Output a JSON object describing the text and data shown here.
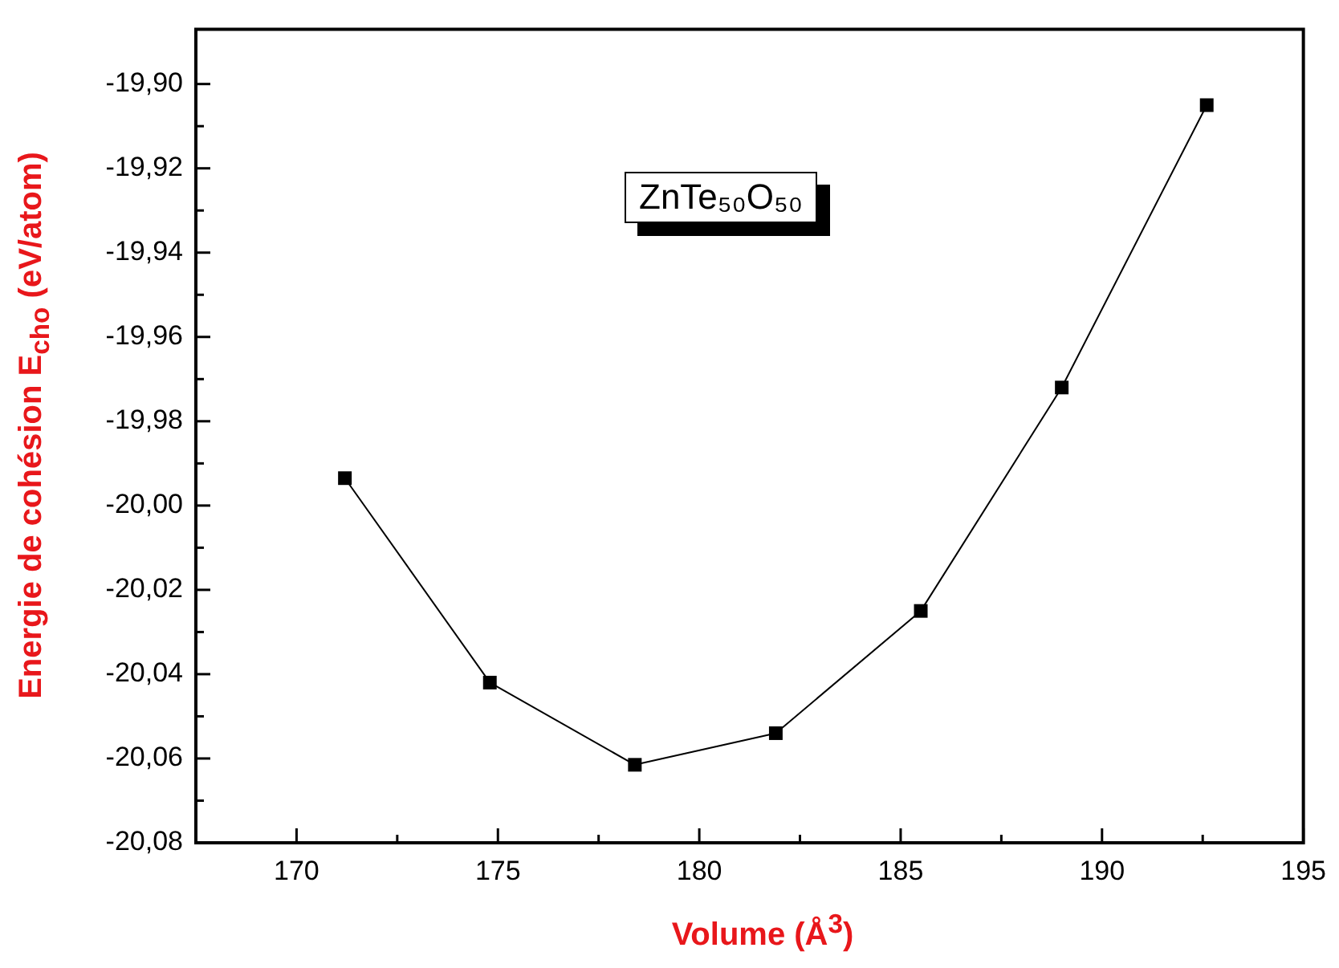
{
  "chart_data": {
    "type": "line",
    "xlabel": "Volume (Å$^{3}$)",
    "ylabel": "Energie de cohésion E$_{cho}$ (eV/atom)",
    "annotations": [
      "ZnTe₅₀O₅₀"
    ],
    "x": [
      171.2,
      174.8,
      178.4,
      181.9,
      185.5,
      189.0,
      192.6
    ],
    "series": [
      {
        "color": "#000000",
        "values": [
          -19.9935,
          -20.042,
          -20.0615,
          -20.054,
          -20.025,
          -19.972,
          -19.905
        ]
      }
    ],
    "marker": "square",
    "line_style": "solid",
    "grid": false,
    "legend": false,
    "xlim": [
      167.5,
      195
    ],
    "xticks": [
      170,
      {
        "value": 172.5,
        "label": null
      },
      175,
      {
        "value": 177.5,
        "label": null
      },
      180,
      {
        "value": 182.5,
        "label": null
      },
      185,
      {
        "value": 187.5,
        "label": null
      },
      190,
      {
        "value": 192.5,
        "label": null
      },
      195
    ],
    "ylim": [
      -20.08,
      -19.887
    ],
    "yticks": [
      {
        "value": -20.08,
        "label": "-20,08"
      },
      {
        "value": -20.07,
        "label": null
      },
      {
        "value": -20.06,
        "label": "-20,06"
      },
      {
        "value": -20.05,
        "label": null
      },
      {
        "value": -20.04,
        "label": "-20,04"
      },
      {
        "value": -20.03,
        "label": null
      },
      {
        "value": -20.02,
        "label": "-20,02"
      },
      {
        "value": -20.01,
        "label": null
      },
      {
        "value": -20.0,
        "label": "-20,00"
      },
      {
        "value": -19.99,
        "label": null
      },
      {
        "value": -19.98,
        "label": "-19,98"
      },
      {
        "value": -19.97,
        "label": null
      },
      {
        "value": -19.96,
        "label": "-19,96"
      },
      {
        "value": -19.95,
        "label": null
      },
      {
        "value": -19.94,
        "label": "-19,94"
      },
      {
        "value": -19.93,
        "label": null
      },
      {
        "value": -19.92,
        "label": "-19,92"
      },
      {
        "value": -19.91,
        "label": null
      },
      {
        "value": -19.9,
        "label": "-19,90"
      }
    ]
  }
}
